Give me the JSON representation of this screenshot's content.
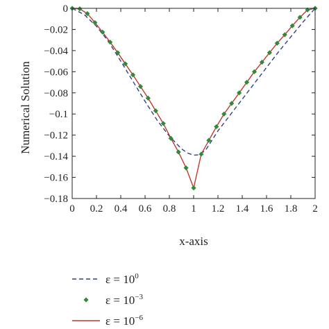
{
  "chart_data": {
    "type": "line",
    "xlabel": "x-axis",
    "ylabel": "Numerical Solution",
    "xlim": [
      0,
      2
    ],
    "ylim": [
      -0.18,
      0
    ],
    "xticks": [
      "0",
      "0.2",
      "0.4",
      "0.6",
      "0.8",
      "1",
      "1.2",
      "1.4",
      "1.6",
      "1.8",
      "2"
    ],
    "xtick_values": [
      0,
      0.2,
      0.4,
      0.6,
      0.8,
      1,
      1.2,
      1.4,
      1.6,
      1.8,
      2
    ],
    "yticks": [
      "0",
      "−0.02",
      "−0.04",
      "−0.06",
      "−0.08",
      "−0.1",
      "−0.12",
      "−0.14",
      "−0.16",
      "−0.18"
    ],
    "ytick_values": [
      0,
      -0.02,
      -0.04,
      -0.06,
      -0.08,
      -0.1,
      -0.12,
      -0.14,
      -0.16,
      -0.18
    ],
    "grid": false,
    "legend_position": "below",
    "series": [
      {
        "name_base": "ε = 10",
        "name_exp": "0",
        "style": "dashed",
        "color": "#2f3d8c",
        "x": [
          0,
          0.1,
          0.2,
          0.3,
          0.4,
          0.5,
          0.6,
          0.7,
          0.8,
          0.9,
          0.95,
          1.0,
          1.05,
          1.1,
          1.2,
          1.3,
          1.4,
          1.5,
          1.6,
          1.7,
          1.8,
          1.9,
          2.0
        ],
        "y": [
          0,
          -0.006,
          -0.017,
          -0.0315,
          -0.05,
          -0.069,
          -0.088,
          -0.106,
          -0.121,
          -0.133,
          -0.137,
          -0.139,
          -0.1385,
          -0.134,
          -0.116,
          -0.101,
          -0.086,
          -0.071,
          -0.056,
          -0.041,
          -0.027,
          -0.013,
          0
        ]
      },
      {
        "name_base": "ε = 10",
        "name_exp": "−3",
        "style": "markers",
        "marker": "diamond",
        "color": "#2e8b3a",
        "x": [
          0,
          0.0625,
          0.125,
          0.1875,
          0.25,
          0.3125,
          0.375,
          0.4375,
          0.5,
          0.5625,
          0.625,
          0.6875,
          0.75,
          0.8125,
          0.875,
          0.9375,
          1.0,
          1.0625,
          1.125,
          1.1875,
          1.25,
          1.3125,
          1.375,
          1.4375,
          1.5,
          1.5625,
          1.625,
          1.6875,
          1.75,
          1.8125,
          1.875,
          1.9375,
          2.0
        ],
        "y": [
          0,
          -0.0005,
          -0.005,
          -0.0135,
          -0.0225,
          -0.032,
          -0.042,
          -0.0525,
          -0.063,
          -0.074,
          -0.085,
          -0.097,
          -0.109,
          -0.123,
          -0.136,
          -0.151,
          -0.17,
          -0.138,
          -0.125,
          -0.112,
          -0.1,
          -0.09,
          -0.08,
          -0.07,
          -0.06,
          -0.051,
          -0.042,
          -0.033,
          -0.025,
          -0.0165,
          -0.0085,
          -0.0015,
          0
        ]
      },
      {
        "name_base": "ε = 10",
        "name_exp": "−6",
        "style": "solid",
        "color": "#c0392b",
        "x": [
          0,
          0.0625,
          0.125,
          0.1875,
          0.25,
          0.3125,
          0.375,
          0.4375,
          0.5,
          0.5625,
          0.625,
          0.6875,
          0.75,
          0.8125,
          0.875,
          0.9375,
          1.0,
          1.0625,
          1.125,
          1.1875,
          1.25,
          1.3125,
          1.375,
          1.4375,
          1.5,
          1.5625,
          1.625,
          1.6875,
          1.75,
          1.8125,
          1.875,
          1.9375,
          2.0
        ],
        "y": [
          0,
          -0.0005,
          -0.005,
          -0.0135,
          -0.0225,
          -0.032,
          -0.042,
          -0.0525,
          -0.063,
          -0.074,
          -0.085,
          -0.097,
          -0.109,
          -0.123,
          -0.136,
          -0.151,
          -0.17,
          -0.138,
          -0.125,
          -0.112,
          -0.1,
          -0.09,
          -0.08,
          -0.07,
          -0.06,
          -0.051,
          -0.042,
          -0.033,
          -0.025,
          -0.0165,
          -0.0085,
          -0.0015,
          0
        ]
      }
    ]
  }
}
